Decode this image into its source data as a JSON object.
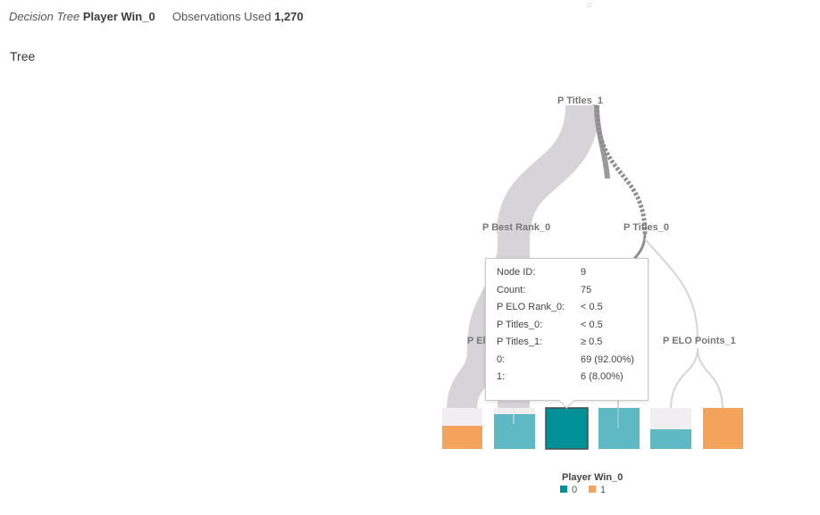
{
  "header": {
    "model_type": "Decision Tree",
    "target_name": "Player Win_0",
    "obs_label": "Observations Used",
    "obs_value": "1,270"
  },
  "grip_glyph": "∷",
  "section_title": "Tree",
  "tree": {
    "labels": {
      "root": "P Titles_1",
      "left": "P Best Rank_0",
      "right": "P Titles_0",
      "left_child_truncated": "P El",
      "right_right": "P ELO Points_1"
    },
    "leaves": [
      {
        "id": "leaf-1",
        "predicted": "1",
        "fill_fraction": 0.6
      },
      {
        "id": "leaf-2",
        "predicted": "0",
        "fill_fraction": 0.85
      },
      {
        "id": "leaf-3",
        "predicted": "0",
        "fill_fraction": 0.92,
        "selected": true
      },
      {
        "id": "leaf-4",
        "predicted": "0",
        "fill_fraction": 1.0
      },
      {
        "id": "leaf-5",
        "predicted": "0",
        "fill_fraction": 0.5
      },
      {
        "id": "leaf-6",
        "predicted": "1",
        "fill_fraction": 1.0
      }
    ]
  },
  "tooltip": {
    "rows": [
      {
        "key": "Node ID:",
        "value": "9"
      },
      {
        "key": "Count:",
        "value": "75"
      },
      {
        "key": "P ELO Rank_0:",
        "value": "< 0.5"
      },
      {
        "key": "P Titles_0:",
        "value": "< 0.5"
      },
      {
        "key": "P Titles_1:",
        "value": "≥ 0.5"
      },
      {
        "key": "0:",
        "value": "69 (92.00%)"
      },
      {
        "key": "1:",
        "value": "6 (8.00%)"
      }
    ]
  },
  "legend": {
    "title": "Player Win_0",
    "items": [
      {
        "label": "0",
        "color": "#009097"
      },
      {
        "label": "1",
        "color": "#f4a45a"
      }
    ]
  },
  "colors": {
    "class_0": "#5fb9c4",
    "class_0_selected": "#009097",
    "class_1": "#f4a45a",
    "branch": "#d6d4d8",
    "leaf_bg": "#f1eef2"
  }
}
